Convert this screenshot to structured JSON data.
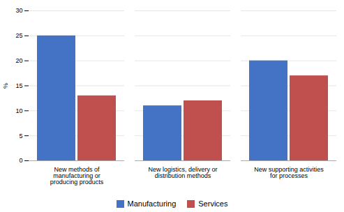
{
  "chart_data": {
    "type": "bar",
    "categories": [
      "New methods of\nmanufacturing or\nproducing products",
      "New logistics, delivery or\ndistribution methods",
      "New supporting activities\nfor processes"
    ],
    "series": [
      {
        "name": "Manufacturing",
        "color": "#4472C4",
        "values": [
          25,
          11,
          20
        ]
      },
      {
        "name": "Services",
        "color": "#C0504D",
        "values": [
          13,
          12,
          17
        ]
      }
    ],
    "ylabel": "%",
    "ylim": [
      0,
      30
    ],
    "yticks": [
      0,
      5,
      10,
      15,
      20,
      25,
      30
    ],
    "grid": true,
    "legend": "bottom"
  }
}
